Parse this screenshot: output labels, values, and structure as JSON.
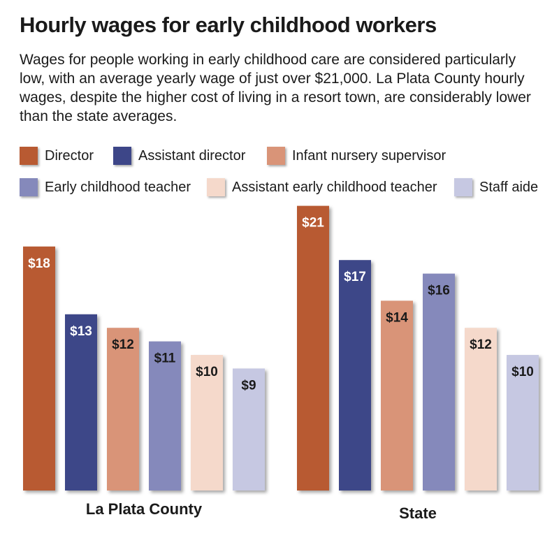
{
  "header": {
    "title": "Hourly wages for early childhood workers",
    "subtitle": "Wages for people working in early childhood care are considered particularly low, with an average yearly wage of just over $21,000. La Plata County hourly wages, despite the higher cost of living in a resort town, are considerably lower than the state averages."
  },
  "chart_data": {
    "type": "bar",
    "title": "Hourly wages for early childhood workers",
    "subtitle": "Wages for people working in early childhood care are considered particularly low, with an average yearly wage of just over $21,000. La Plata County hourly wages, despite the higher cost of living in a resort town, are considerably lower than the state averages.",
    "xlabel": "",
    "ylabel": "",
    "ylim": [
      0,
      21
    ],
    "grid": false,
    "legend_placement": "top",
    "categories": [
      "La Plata County",
      "State"
    ],
    "series": [
      {
        "name": "Director",
        "color": "#b85a32",
        "values": [
          18,
          21
        ],
        "labels": [
          "$18",
          "$21"
        ],
        "label_color": "light"
      },
      {
        "name": "Assistant director",
        "color": "#3d4688",
        "values": [
          13,
          17
        ],
        "labels": [
          "$13",
          "$17"
        ],
        "label_color": "light"
      },
      {
        "name": "Infant nursery supervisor",
        "color": "#d99478",
        "values": [
          12,
          14
        ],
        "labels": [
          "$12",
          "$14"
        ],
        "label_color": "dark"
      },
      {
        "name": "Early childhood teacher",
        "color": "#8589bb",
        "values": [
          11,
          16
        ],
        "labels": [
          "$11",
          "$16"
        ],
        "label_color": "dark"
      },
      {
        "name": "Assistant early childhood teacher",
        "color": "#f5d9cb",
        "values": [
          10,
          12
        ],
        "labels": [
          "$10",
          "$12"
        ],
        "label_color": "dark"
      },
      {
        "name": "Staff aide",
        "color": "#c6c8e2",
        "values": [
          9,
          10
        ],
        "labels": [
          "$9",
          "$10"
        ],
        "label_color": "dark"
      }
    ]
  }
}
